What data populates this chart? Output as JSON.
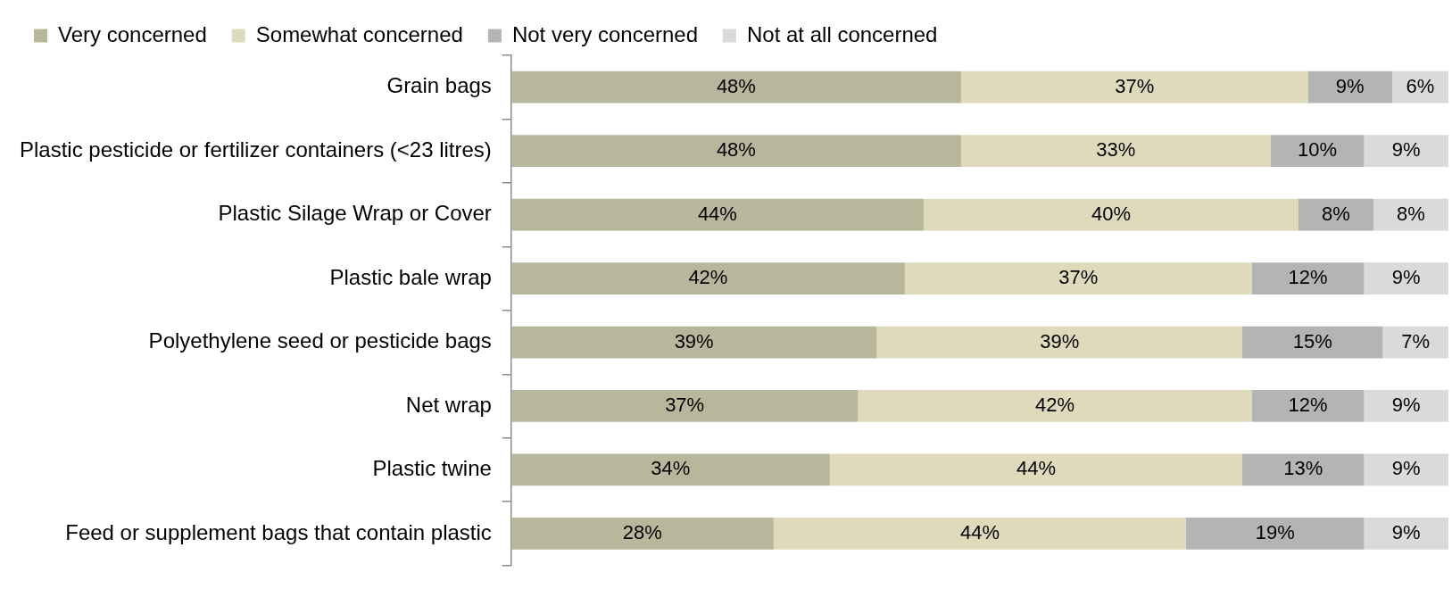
{
  "chart_data": {
    "type": "bar",
    "orientation": "horizontal",
    "stacked": true,
    "legend": "top",
    "tick_labels": "y",
    "categories": [
      "Grain bags",
      "Plastic pesticide or fertilizer containers (<23 litres)",
      "Plastic Silage Wrap or Cover",
      "Plastic bale wrap",
      "Polyethylene seed or pesticide bags",
      "Net wrap",
      "Plastic twine",
      "Feed or supplement bags that contain plastic"
    ],
    "xlim": [
      0,
      100
    ],
    "series": [
      {
        "name": "Very concerned",
        "color": "#b8b79c",
        "values": [
          48,
          48,
          44,
          42,
          39,
          37,
          34,
          28
        ],
        "value_labels": [
          "48%",
          "48%",
          "44%",
          "42%",
          "39%",
          "37%",
          "34%",
          "28%"
        ]
      },
      {
        "name": "Somewhat concerned",
        "color": "#dedabb",
        "values": [
          37,
          33,
          40,
          37,
          39,
          42,
          44,
          44
        ],
        "value_labels": [
          "37%",
          "33%",
          "40%",
          "37%",
          "39%",
          "42%",
          "44%",
          "44%"
        ]
      },
      {
        "name": "Not very concerned",
        "color": "#b4b4b4",
        "values": [
          9,
          10,
          8,
          12,
          15,
          12,
          13,
          19
        ],
        "value_labels": [
          "9%",
          "10%",
          "8%",
          "12%",
          "15%",
          "12%",
          "13%",
          "19%"
        ]
      },
      {
        "name": "Not at all concerned",
        "color": "#dadada",
        "values": [
          6,
          9,
          8,
          9,
          7,
          9,
          9,
          9
        ],
        "value_labels": [
          "6%",
          "9%",
          "8%",
          "9%",
          "7%",
          "9%",
          "9%",
          "9%"
        ]
      }
    ]
  }
}
